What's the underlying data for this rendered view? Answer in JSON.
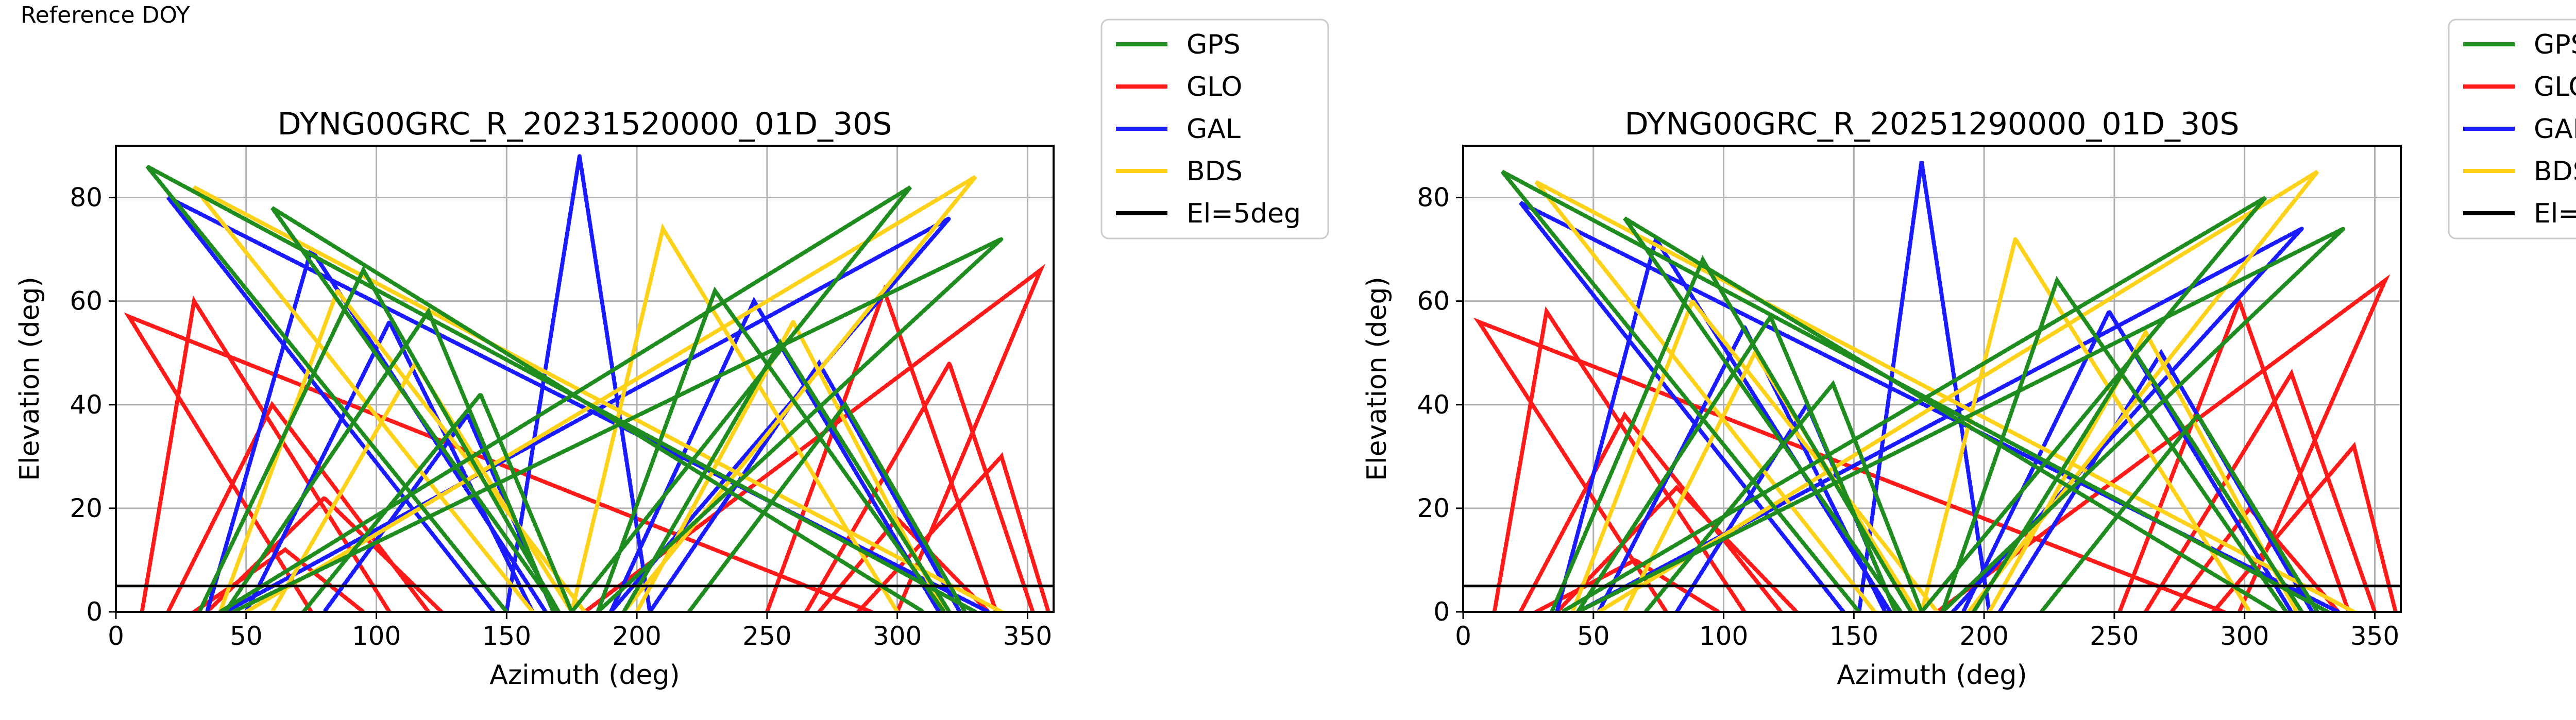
{
  "figure": {
    "corner_label": "Reference DOY"
  },
  "legend": {
    "entries": [
      {
        "name": "GPS",
        "color": "#1e8c1e"
      },
      {
        "name": "GLO",
        "color": "#ff1a1a"
      },
      {
        "name": "GAL",
        "color": "#1a1aff"
      },
      {
        "name": "BDS",
        "color": "#ffd21a"
      },
      {
        "name": "El=5deg",
        "color": "#000000"
      }
    ]
  },
  "chart_data": [
    {
      "type": "scatter",
      "title": "DYNG00GRC_R_20231520000_01D_30S",
      "xlabel": "Azimuth (deg)",
      "ylabel": "Elevation (deg)",
      "xlim": [
        0,
        360
      ],
      "ylim": [
        0,
        90
      ],
      "xticks": [
        0,
        50,
        100,
        150,
        200,
        250,
        300,
        350
      ],
      "yticks": [
        0,
        20,
        40,
        60,
        80
      ],
      "grid": true,
      "legend_placement": "outside right",
      "reference_line": {
        "name": "El=5deg",
        "elevation": 5
      },
      "series": [
        {
          "name": "GPS",
          "color": "#1e8c1e",
          "tracks": [
            {
              "peak_az": 12,
              "peak_el": 86,
              "rise_az": 150,
              "set_az": 330
            },
            {
              "peak_az": 60,
              "peak_el": 78,
              "rise_az": 170,
              "set_az": 310
            },
            {
              "peak_az": 95,
              "peak_el": 66,
              "rise_az": 170,
              "set_az": 32
            },
            {
              "peak_az": 120,
              "peak_el": 58,
              "rise_az": 168,
              "set_az": 42
            },
            {
              "peak_az": 140,
              "peak_el": 42,
              "rise_az": 175,
              "set_az": 72
            },
            {
              "peak_az": 230,
              "peak_el": 62,
              "rise_az": 185,
              "set_az": 318
            },
            {
              "peak_az": 255,
              "peak_el": 52,
              "rise_az": 195,
              "set_az": 320
            },
            {
              "peak_az": 280,
              "peak_el": 40,
              "rise_az": 220,
              "set_az": 326
            },
            {
              "peak_az": 305,
              "peak_el": 82,
              "rise_az": 175,
              "set_az": 40
            },
            {
              "peak_az": 340,
              "peak_el": 72,
              "rise_az": 185,
              "set_az": 45
            }
          ]
        },
        {
          "name": "GLO",
          "color": "#ff1a1a",
          "tracks": [
            {
              "peak_az": 5,
              "peak_el": 57,
              "rise_az": 75,
              "set_az": 290
            },
            {
              "peak_az": 30,
              "peak_el": 60,
              "rise_az": 10,
              "set_az": 105
            },
            {
              "peak_az": 60,
              "peak_el": 40,
              "rise_az": 20,
              "set_az": 120
            },
            {
              "peak_az": 80,
              "peak_el": 22,
              "rise_az": 35,
              "set_az": 125
            },
            {
              "peak_az": 65,
              "peak_el": 12,
              "rise_az": 30,
              "set_az": 95
            },
            {
              "peak_az": 295,
              "peak_el": 62,
              "rise_az": 250,
              "set_az": 338
            },
            {
              "peak_az": 320,
              "peak_el": 48,
              "rise_az": 265,
              "set_az": 352
            },
            {
              "peak_az": 340,
              "peak_el": 30,
              "rise_az": 285,
              "set_az": 358
            },
            {
              "peak_az": 300,
              "peak_el": 18,
              "rise_az": 270,
              "set_az": 335
            },
            {
              "peak_az": 355,
              "peak_el": 66,
              "rise_az": 180,
              "set_az": 300
            }
          ]
        },
        {
          "name": "GAL",
          "color": "#1a1aff",
          "tracks": [
            {
              "peak_az": 20,
              "peak_el": 80,
              "rise_az": 145,
              "set_az": 335
            },
            {
              "peak_az": 75,
              "peak_el": 70,
              "rise_az": 165,
              "set_az": 35
            },
            {
              "peak_az": 105,
              "peak_el": 56,
              "rise_az": 160,
              "set_az": 50
            },
            {
              "peak_az": 135,
              "peak_el": 38,
              "rise_az": 168,
              "set_az": 80
            },
            {
              "peak_az": 178,
              "peak_el": 88,
              "rise_az": 150,
              "set_az": 205
            },
            {
              "peak_az": 245,
              "peak_el": 60,
              "rise_az": 190,
              "set_az": 316
            },
            {
              "peak_az": 270,
              "peak_el": 48,
              "rise_az": 205,
              "set_az": 324
            },
            {
              "peak_az": 320,
              "peak_el": 76,
              "rise_az": 190,
              "set_az": 42
            }
          ]
        },
        {
          "name": "BDS",
          "color": "#ffd21a",
          "tracks": [
            {
              "peak_az": 30,
              "peak_el": 82,
              "rise_az": 160,
              "set_az": 340
            },
            {
              "peak_az": 85,
              "peak_el": 62,
              "rise_az": 180,
              "set_az": 40
            },
            {
              "peak_az": 115,
              "peak_el": 48,
              "rise_az": 175,
              "set_az": 60
            },
            {
              "peak_az": 210,
              "peak_el": 74,
              "rise_az": 175,
              "set_az": 300
            },
            {
              "peak_az": 260,
              "peak_el": 56,
              "rise_az": 200,
              "set_az": 318
            },
            {
              "peak_az": 330,
              "peak_el": 84,
              "rise_az": 195,
              "set_az": 50
            }
          ]
        }
      ]
    },
    {
      "type": "scatter",
      "title": "DYNG00GRC_R_20251290000_01D_30S",
      "xlabel": "Azimuth (deg)",
      "ylabel": "Elevation (deg)",
      "xlim": [
        0,
        360
      ],
      "ylim": [
        0,
        90
      ],
      "xticks": [
        0,
        50,
        100,
        150,
        200,
        250,
        300,
        350
      ],
      "yticks": [
        0,
        20,
        40,
        60,
        80
      ],
      "grid": true,
      "legend_placement": "outside right",
      "reference_line": {
        "name": "El=5deg",
        "elevation": 5
      },
      "series": [
        {
          "name": "GPS",
          "color": "#1e8c1e",
          "tracks": [
            {
              "peak_az": 15,
              "peak_el": 85,
              "rise_az": 152,
              "set_az": 332
            },
            {
              "peak_az": 62,
              "peak_el": 76,
              "rise_az": 168,
              "set_az": 312
            },
            {
              "peak_az": 92,
              "peak_el": 68,
              "rise_az": 172,
              "set_az": 34
            },
            {
              "peak_az": 118,
              "peak_el": 57,
              "rise_az": 166,
              "set_az": 44
            },
            {
              "peak_az": 142,
              "peak_el": 44,
              "rise_az": 176,
              "set_az": 70
            },
            {
              "peak_az": 228,
              "peak_el": 64,
              "rise_az": 184,
              "set_az": 316
            },
            {
              "peak_az": 258,
              "peak_el": 50,
              "rise_az": 196,
              "set_az": 322
            },
            {
              "peak_az": 282,
              "peak_el": 38,
              "rise_az": 222,
              "set_az": 328
            },
            {
              "peak_az": 308,
              "peak_el": 80,
              "rise_az": 176,
              "set_az": 38
            },
            {
              "peak_az": 338,
              "peak_el": 74,
              "rise_az": 184,
              "set_az": 44
            }
          ]
        },
        {
          "name": "GLO",
          "color": "#ff1a1a",
          "tracks": [
            {
              "peak_az": 6,
              "peak_el": 56,
              "rise_az": 78,
              "set_az": 292
            },
            {
              "peak_az": 32,
              "peak_el": 58,
              "rise_az": 12,
              "set_az": 108
            },
            {
              "peak_az": 62,
              "peak_el": 38,
              "rise_az": 22,
              "set_az": 122
            },
            {
              "peak_az": 82,
              "peak_el": 24,
              "rise_az": 36,
              "set_az": 128
            },
            {
              "peak_az": 66,
              "peak_el": 10,
              "rise_az": 28,
              "set_az": 98
            },
            {
              "peak_az": 298,
              "peak_el": 60,
              "rise_az": 252,
              "set_az": 340
            },
            {
              "peak_az": 318,
              "peak_el": 46,
              "rise_az": 262,
              "set_az": 350
            },
            {
              "peak_az": 342,
              "peak_el": 32,
              "rise_az": 288,
              "set_az": 358
            },
            {
              "peak_az": 302,
              "peak_el": 20,
              "rise_az": 272,
              "set_az": 336
            },
            {
              "peak_az": 354,
              "peak_el": 64,
              "rise_az": 182,
              "set_az": 298
            }
          ]
        },
        {
          "name": "GAL",
          "color": "#1a1aff",
          "tracks": [
            {
              "peak_az": 22,
              "peak_el": 79,
              "rise_az": 146,
              "set_az": 336
            },
            {
              "peak_az": 74,
              "peak_el": 72,
              "rise_az": 164,
              "set_az": 36
            },
            {
              "peak_az": 108,
              "peak_el": 55,
              "rise_az": 162,
              "set_az": 52
            },
            {
              "peak_az": 132,
              "peak_el": 40,
              "rise_az": 166,
              "set_az": 82
            },
            {
              "peak_az": 176,
              "peak_el": 87,
              "rise_az": 152,
              "set_az": 202
            },
            {
              "peak_az": 248,
              "peak_el": 58,
              "rise_az": 192,
              "set_az": 318
            },
            {
              "peak_az": 268,
              "peak_el": 50,
              "rise_az": 206,
              "set_az": 326
            },
            {
              "peak_az": 322,
              "peak_el": 74,
              "rise_az": 188,
              "set_az": 44
            }
          ]
        },
        {
          "name": "BDS",
          "color": "#ffd21a",
          "tracks": [
            {
              "peak_az": 28,
              "peak_el": 83,
              "rise_az": 158,
              "set_az": 342
            },
            {
              "peak_az": 88,
              "peak_el": 60,
              "rise_az": 182,
              "set_az": 42
            },
            {
              "peak_az": 112,
              "peak_el": 50,
              "rise_az": 174,
              "set_az": 62
            },
            {
              "peak_az": 212,
              "peak_el": 72,
              "rise_az": 176,
              "set_az": 302
            },
            {
              "peak_az": 262,
              "peak_el": 54,
              "rise_az": 202,
              "set_az": 320
            },
            {
              "peak_az": 328,
              "peak_el": 85,
              "rise_az": 194,
              "set_az": 52
            }
          ]
        }
      ]
    }
  ]
}
